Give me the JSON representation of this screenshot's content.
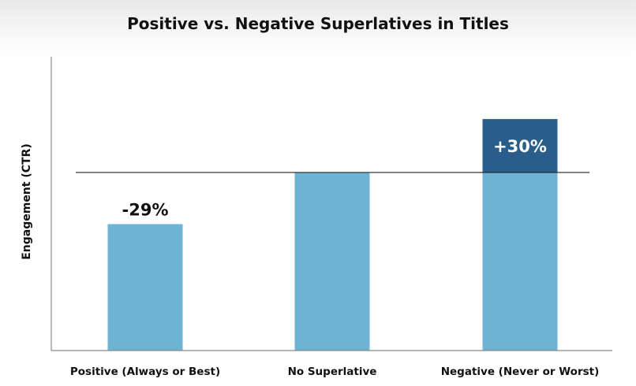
{
  "chart_data": {
    "type": "bar",
    "title": "Positive vs. Negative Superlatives in Titles",
    "xlabel": "",
    "ylabel": "Engagement (CTR)",
    "categories": [
      "Positive (Always or Best)",
      "No Superlative",
      "Negative (Never or Worst)"
    ],
    "baseline_value": 100,
    "values": [
      71,
      100,
      130
    ],
    "data_labels": [
      "-29%",
      "",
      "+30%"
    ],
    "ylim": [
      0,
      165
    ],
    "grid": false,
    "legend": "none",
    "colors": {
      "bar": "#6fb3d4",
      "increase": "#2a5d8a",
      "label_dark": "#111111",
      "label_light": "#ffffff",
      "axis": "#888888",
      "reference_line": "#222222"
    }
  }
}
